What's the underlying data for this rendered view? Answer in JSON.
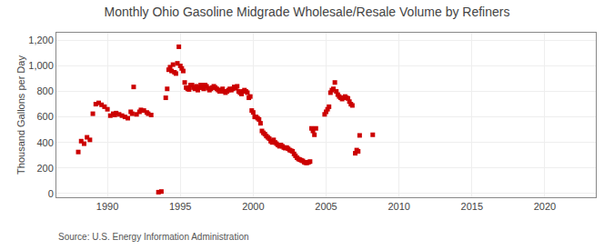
{
  "chart_data": {
    "type": "scatter",
    "title": "Monthly Ohio Gasoline Midgrade Wholesale/Resale Volume by Refiners",
    "ylabel": "Thousand Gallons per Day",
    "annotations": [
      "Source: U.S. Energy Information Administration"
    ],
    "color": "#cc0000",
    "marker": "square",
    "grid": true,
    "xlim": [
      1986.5,
      2023.5
    ],
    "ylim": [
      -30,
      1260
    ],
    "xticks": [
      1990,
      1995,
      2000,
      2005,
      2010,
      2015,
      2020
    ],
    "yticks": [
      0,
      200,
      400,
      600,
      800,
      {
        "value": 1000,
        "label": "1,000"
      },
      {
        "value": 1200,
        "label": "1,200"
      }
    ],
    "x": [
      1988.0,
      1988.2,
      1988.4,
      1988.6,
      1988.8,
      1989.0,
      1989.2,
      1989.4,
      1989.6,
      1989.8,
      1990.0,
      1990.2,
      1990.4,
      1990.5,
      1990.6,
      1990.8,
      1991.0,
      1991.2,
      1991.4,
      1991.6,
      1991.7,
      1991.8,
      1992.0,
      1992.2,
      1992.3,
      1992.5,
      1992.7,
      1992.8,
      1993.0,
      1993.5,
      1993.7,
      1994.0,
      1994.1,
      1994.2,
      1994.3,
      1994.4,
      1994.5,
      1994.6,
      1994.7,
      1994.8,
      1994.9,
      1995.0,
      1995.1,
      1995.2,
      1995.3,
      1995.4,
      1995.5,
      1995.6,
      1995.7,
      1995.8,
      1995.9,
      1996.0,
      1996.1,
      1996.2,
      1996.3,
      1996.4,
      1996.5,
      1996.6,
      1996.7,
      1996.8,
      1996.9,
      1997.0,
      1997.1,
      1997.2,
      1997.3,
      1997.4,
      1997.5,
      1997.6,
      1997.7,
      1997.8,
      1997.9,
      1998.0,
      1998.1,
      1998.2,
      1998.3,
      1998.4,
      1998.5,
      1998.6,
      1998.7,
      1998.8,
      1998.9,
      1999.0,
      1999.1,
      1999.2,
      1999.3,
      1999.4,
      1999.5,
      1999.6,
      1999.7,
      1999.8,
      1999.9,
      2000.0,
      2000.1,
      2000.2,
      2000.3,
      2000.4,
      2000.5,
      2000.6,
      2000.7,
      2000.8,
      2000.9,
      2001.0,
      2001.1,
      2001.2,
      2001.3,
      2001.4,
      2001.5,
      2001.6,
      2001.7,
      2001.8,
      2001.9,
      2002.0,
      2002.1,
      2002.2,
      2002.3,
      2002.4,
      2002.5,
      2002.6,
      2002.7,
      2002.8,
      2002.9,
      2003.0,
      2003.1,
      2003.2,
      2003.3,
      2003.4,
      2003.5,
      2003.6,
      2003.7,
      2003.8,
      2003.9,
      2004.0,
      2004.1,
      2004.2,
      2004.3,
      2004.9,
      2005.0,
      2005.1,
      2005.2,
      2005.3,
      2005.4,
      2005.5,
      2005.6,
      2005.7,
      2005.8,
      2005.9,
      2006.0,
      2006.1,
      2006.2,
      2006.3,
      2006.4,
      2006.5,
      2006.6,
      2006.7,
      2006.8,
      2007.0,
      2007.1,
      2007.2,
      2007.3,
      2008.2
    ],
    "values": [
      325,
      410,
      390,
      440,
      420,
      625,
      700,
      710,
      695,
      680,
      660,
      610,
      625,
      615,
      630,
      620,
      610,
      600,
      590,
      640,
      625,
      835,
      620,
      640,
      655,
      650,
      635,
      625,
      615,
      10,
      15,
      750,
      820,
      970,
      990,
      960,
      1010,
      950,
      940,
      1020,
      1150,
      1000,
      980,
      960,
      870,
      830,
      820,
      815,
      850,
      850,
      830,
      820,
      840,
      810,
      830,
      850,
      830,
      820,
      850,
      840,
      825,
      810,
      820,
      830,
      840,
      830,
      820,
      810,
      800,
      810,
      820,
      800,
      790,
      800,
      810,
      820,
      810,
      820,
      835,
      825,
      840,
      800,
      790,
      780,
      800,
      810,
      800,
      790,
      750,
      760,
      650,
      635,
      600,
      600,
      590,
      580,
      550,
      490,
      475,
      465,
      450,
      440,
      430,
      410,
      400,
      420,
      400,
      390,
      380,
      370,
      380,
      370,
      360,
      355,
      360,
      350,
      340,
      335,
      330,
      310,
      295,
      280,
      270,
      265,
      260,
      255,
      245,
      240,
      240,
      245,
      250,
      510,
      490,
      460,
      510,
      620,
      640,
      660,
      680,
      790,
      810,
      820,
      870,
      800,
      775,
      760,
      750,
      740,
      750,
      760,
      750,
      745,
      720,
      700,
      690,
      315,
      340,
      330,
      455,
      460
    ]
  }
}
